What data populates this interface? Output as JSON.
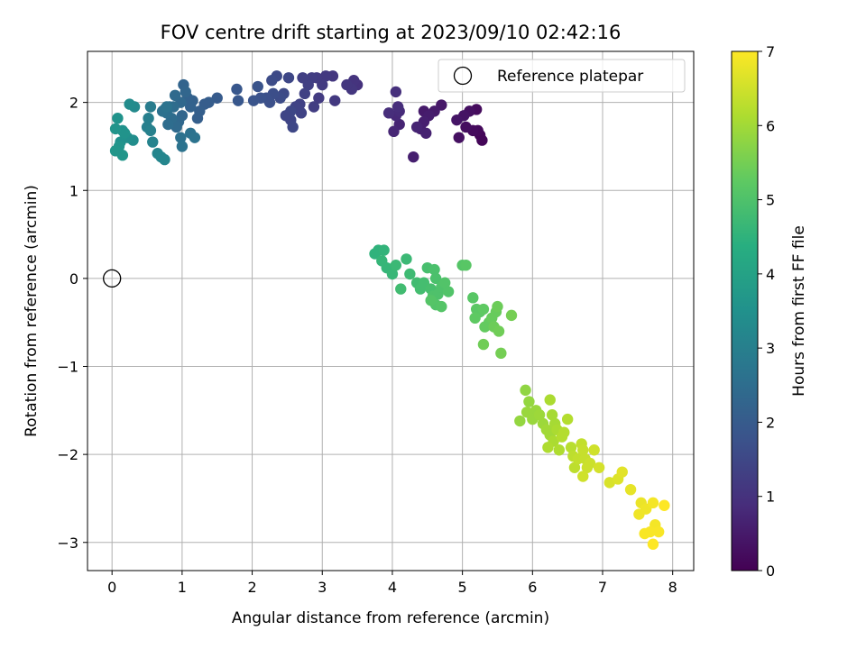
{
  "chart_data": {
    "type": "scatter",
    "title": "FOV centre drift starting at 2023/09/10 02:42:16",
    "xlabel": "Angular distance from reference (arcmin)",
    "ylabel": "Rotation from reference (arcmin)",
    "xlim": [
      -0.35,
      8.3
    ],
    "ylim": [
      -3.32,
      2.58
    ],
    "xticks": [
      0,
      1,
      2,
      3,
      4,
      5,
      6,
      7,
      8
    ],
    "yticks": [
      -3,
      -2,
      -1,
      0,
      1,
      2
    ],
    "grid": true,
    "legend": {
      "position": "top-right",
      "label": "Reference platepar"
    },
    "reference_point": {
      "x": 0,
      "y": 0
    },
    "colorbar": {
      "label": "Hours from first FF file",
      "min": 0,
      "max": 7,
      "ticks": [
        0,
        1,
        2,
        3,
        4,
        5,
        6,
        7
      ],
      "colormap": "viridis"
    },
    "series": [
      {
        "points": [
          [
            5.28,
            1.57,
            0.1
          ],
          [
            5.25,
            1.63,
            0.1
          ],
          [
            5.22,
            1.68,
            0.15
          ],
          [
            5.15,
            1.68,
            0.2
          ],
          [
            5.05,
            1.72,
            0.25
          ],
          [
            5.2,
            1.92,
            0.2
          ],
          [
            4.95,
            1.6,
            0.3
          ],
          [
            5.1,
            1.9,
            0.3
          ],
          [
            5.02,
            1.85,
            0.35
          ],
          [
            4.92,
            1.8,
            0.4
          ],
          [
            4.7,
            1.97,
            0.45
          ],
          [
            4.6,
            1.9,
            0.5
          ],
          [
            4.45,
            1.9,
            0.5
          ],
          [
            4.52,
            1.85,
            0.55
          ],
          [
            4.45,
            1.78,
            0.6
          ],
          [
            4.4,
            1.7,
            0.6
          ],
          [
            4.48,
            1.65,
            0.65
          ],
          [
            4.3,
            1.38,
            0.6
          ],
          [
            4.35,
            1.72,
            0.7
          ],
          [
            4.1,
            1.75,
            0.7
          ],
          [
            4.05,
            1.85,
            0.8
          ],
          [
            4.02,
            1.67,
            0.75
          ],
          [
            4.1,
            1.9,
            0.85
          ],
          [
            4.08,
            1.95,
            0.9
          ],
          [
            3.95,
            1.88,
            0.9
          ],
          [
            4.05,
            2.12,
            0.95
          ],
          [
            3.5,
            2.2,
            1.0
          ],
          [
            3.45,
            2.25,
            1.05
          ],
          [
            3.42,
            2.15,
            1.1
          ],
          [
            3.35,
            2.2,
            1.1
          ],
          [
            3.18,
            2.02,
            1.15
          ],
          [
            3.15,
            2.3,
            1.1
          ],
          [
            3.05,
            2.3,
            1.15
          ],
          [
            3.0,
            2.2,
            1.2
          ],
          [
            2.92,
            2.28,
            1.2
          ],
          [
            2.95,
            2.05,
            1.2
          ],
          [
            2.88,
            1.95,
            1.25
          ],
          [
            2.85,
            2.28,
            1.25
          ],
          [
            2.8,
            2.2,
            1.3
          ],
          [
            2.72,
            2.28,
            1.3
          ],
          [
            2.75,
            2.1,
            1.35
          ],
          [
            2.68,
            1.98,
            1.35
          ],
          [
            2.7,
            1.88,
            1.4
          ],
          [
            2.62,
            1.95,
            1.4
          ],
          [
            2.55,
            1.8,
            1.45
          ],
          [
            2.58,
            1.72,
            1.5
          ],
          [
            2.55,
            1.9,
            1.5
          ],
          [
            2.48,
            1.85,
            1.45
          ],
          [
            2.52,
            2.28,
            1.5
          ],
          [
            2.45,
            2.1,
            1.55
          ],
          [
            2.35,
            2.3,
            1.55
          ],
          [
            2.4,
            2.05,
            1.6
          ],
          [
            2.28,
            2.25,
            1.6
          ],
          [
            2.3,
            2.1,
            1.65
          ],
          [
            2.2,
            2.05,
            1.7
          ],
          [
            2.25,
            2.0,
            1.7
          ],
          [
            2.12,
            2.05,
            1.75
          ],
          [
            2.08,
            2.18,
            1.8
          ],
          [
            2.02,
            2.02,
            1.8
          ],
          [
            1.8,
            2.02,
            1.9
          ],
          [
            1.78,
            2.15,
            1.9
          ],
          [
            1.5,
            2.05,
            2.0
          ],
          [
            1.38,
            2.0,
            2.05
          ],
          [
            1.32,
            1.98,
            2.05
          ],
          [
            1.25,
            1.9,
            2.1
          ],
          [
            1.22,
            1.82,
            2.1
          ],
          [
            1.15,
            2.02,
            2.15
          ],
          [
            1.12,
            1.95,
            2.2
          ],
          [
            1.08,
            2.05,
            2.2
          ],
          [
            1.02,
            2.2,
            2.25
          ],
          [
            1.05,
            2.12,
            2.3
          ],
          [
            1.0,
            1.85,
            2.3
          ],
          [
            0.98,
            2.0,
            2.35
          ],
          [
            0.95,
            1.78,
            2.35
          ],
          [
            0.92,
            1.72,
            2.4
          ],
          [
            0.9,
            2.08,
            2.4
          ],
          [
            0.88,
            1.95,
            2.45
          ],
          [
            0.85,
            1.82,
            2.45
          ],
          [
            0.82,
            1.95,
            2.5
          ],
          [
            0.8,
            1.75,
            2.5
          ],
          [
            0.78,
            1.88,
            2.55
          ],
          [
            0.75,
            1.92,
            2.55
          ],
          [
            0.72,
            1.9,
            2.6
          ],
          [
            0.98,
            1.6,
            2.6
          ],
          [
            1.0,
            1.5,
            2.65
          ],
          [
            1.12,
            1.65,
            2.6
          ],
          [
            1.18,
            1.6,
            2.65
          ],
          [
            0.78,
            1.95,
            2.65
          ],
          [
            0.55,
            1.95,
            2.9
          ],
          [
            0.52,
            1.82,
            3.0
          ],
          [
            0.5,
            1.72,
            3.0
          ],
          [
            0.55,
            1.68,
            3.05
          ],
          [
            0.58,
            1.55,
            3.1
          ],
          [
            0.65,
            1.42,
            3.15
          ],
          [
            0.7,
            1.38,
            3.2
          ],
          [
            0.75,
            1.35,
            3.2
          ],
          [
            0.32,
            1.95,
            3.3
          ],
          [
            0.25,
            1.98,
            3.35
          ],
          [
            0.3,
            1.57,
            3.4
          ],
          [
            0.22,
            1.6,
            3.45
          ],
          [
            0.15,
            1.68,
            3.5
          ],
          [
            0.12,
            1.55,
            3.5
          ],
          [
            0.18,
            1.65,
            3.55
          ],
          [
            0.08,
            1.82,
            3.55
          ],
          [
            0.05,
            1.7,
            3.6
          ],
          [
            0.1,
            1.5,
            3.6
          ],
          [
            0.05,
            1.45,
            3.65
          ],
          [
            0.15,
            1.4,
            3.65
          ],
          [
            3.75,
            0.28,
            4.5
          ],
          [
            3.8,
            0.32,
            4.5
          ],
          [
            3.88,
            0.32,
            4.55
          ],
          [
            3.85,
            0.2,
            4.6
          ],
          [
            3.92,
            0.12,
            4.6
          ],
          [
            4.0,
            0.05,
            4.65
          ],
          [
            4.05,
            0.15,
            4.7
          ],
          [
            4.2,
            0.22,
            4.7
          ],
          [
            4.25,
            0.05,
            4.75
          ],
          [
            4.12,
            -0.12,
            4.8
          ],
          [
            4.35,
            -0.05,
            4.8
          ],
          [
            4.4,
            -0.12,
            4.85
          ],
          [
            4.45,
            -0.05,
            4.85
          ],
          [
            4.5,
            0.12,
            4.9
          ],
          [
            4.55,
            -0.12,
            4.9
          ],
          [
            4.6,
            0.1,
            4.95
          ],
          [
            4.62,
            0.0,
            4.95
          ],
          [
            4.58,
            -0.2,
            5.0
          ],
          [
            4.65,
            -0.18,
            5.0
          ],
          [
            4.7,
            -0.1,
            5.0
          ],
          [
            4.75,
            -0.05,
            5.05
          ],
          [
            4.8,
            -0.15,
            5.05
          ],
          [
            4.62,
            -0.3,
            5.05
          ],
          [
            4.7,
            -0.32,
            5.1
          ],
          [
            4.55,
            -0.25,
            5.1
          ],
          [
            5.0,
            0.15,
            5.1
          ],
          [
            5.05,
            0.15,
            5.15
          ],
          [
            5.15,
            -0.22,
            5.15
          ],
          [
            5.2,
            -0.35,
            5.2
          ],
          [
            5.25,
            -0.38,
            5.2
          ],
          [
            5.3,
            -0.35,
            5.25
          ],
          [
            5.18,
            -0.45,
            5.25
          ],
          [
            5.32,
            -0.55,
            5.3
          ],
          [
            5.38,
            -0.5,
            5.3
          ],
          [
            5.42,
            -0.45,
            5.35
          ],
          [
            5.48,
            -0.38,
            5.35
          ],
          [
            5.5,
            -0.32,
            5.4
          ],
          [
            5.45,
            -0.55,
            5.4
          ],
          [
            5.52,
            -0.6,
            5.45
          ],
          [
            5.3,
            -0.75,
            5.45
          ],
          [
            5.55,
            -0.85,
            5.5
          ],
          [
            5.7,
            -0.42,
            5.5
          ],
          [
            5.9,
            -1.27,
            5.8
          ],
          [
            5.95,
            -1.4,
            5.85
          ],
          [
            6.05,
            -1.5,
            5.9
          ],
          [
            6.0,
            -1.6,
            5.9
          ],
          [
            5.92,
            -1.52,
            5.9
          ],
          [
            5.82,
            -1.62,
            5.85
          ],
          [
            6.1,
            -1.55,
            5.95
          ],
          [
            6.15,
            -1.65,
            5.95
          ],
          [
            6.2,
            -1.72,
            6.0
          ],
          [
            6.25,
            -1.78,
            6.0
          ],
          [
            6.28,
            -1.55,
            6.05
          ],
          [
            6.32,
            -1.65,
            6.05
          ],
          [
            6.35,
            -1.72,
            6.1
          ],
          [
            6.25,
            -1.38,
            6.1
          ],
          [
            6.3,
            -1.85,
            6.1
          ],
          [
            6.22,
            -1.92,
            6.15
          ],
          [
            6.38,
            -1.95,
            6.15
          ],
          [
            6.42,
            -1.8,
            6.2
          ],
          [
            6.45,
            -1.75,
            6.2
          ],
          [
            6.5,
            -1.6,
            6.2
          ],
          [
            6.55,
            -1.92,
            6.25
          ],
          [
            6.58,
            -2.02,
            6.3
          ],
          [
            6.6,
            -2.15,
            6.3
          ],
          [
            6.65,
            -2.05,
            6.35
          ],
          [
            6.7,
            -1.88,
            6.35
          ],
          [
            6.72,
            -1.95,
            6.4
          ],
          [
            6.75,
            -2.05,
            6.4
          ],
          [
            6.78,
            -2.15,
            6.45
          ],
          [
            6.82,
            -2.1,
            6.45
          ],
          [
            6.88,
            -1.95,
            6.5
          ],
          [
            6.72,
            -2.25,
            6.5
          ],
          [
            6.95,
            -2.15,
            6.55
          ],
          [
            7.1,
            -2.32,
            6.6
          ],
          [
            7.22,
            -2.28,
            6.65
          ],
          [
            7.28,
            -2.2,
            6.7
          ],
          [
            7.4,
            -2.4,
            6.75
          ],
          [
            7.55,
            -2.55,
            6.8
          ],
          [
            7.52,
            -2.68,
            6.85
          ],
          [
            7.62,
            -2.62,
            6.85
          ],
          [
            7.72,
            -2.55,
            6.9
          ],
          [
            7.75,
            -2.8,
            6.9
          ],
          [
            7.68,
            -2.88,
            6.95
          ],
          [
            7.8,
            -2.88,
            6.95
          ],
          [
            7.6,
            -2.9,
            6.95
          ],
          [
            7.72,
            -3.02,
            7.0
          ],
          [
            7.88,
            -2.58,
            7.0
          ]
        ]
      }
    ]
  }
}
